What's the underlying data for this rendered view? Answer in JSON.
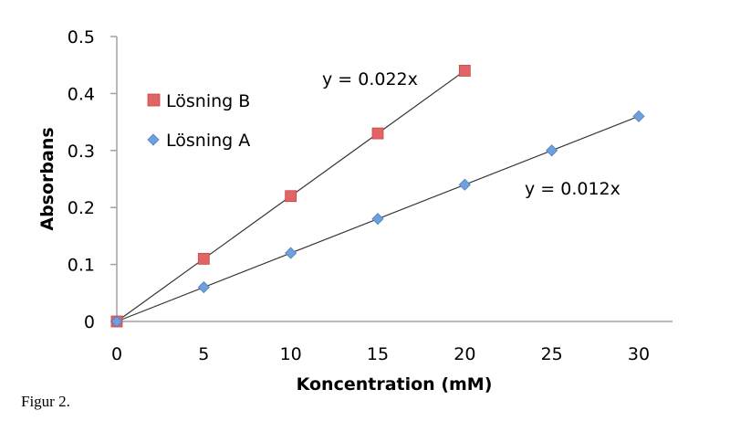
{
  "chart_data": {
    "type": "scatter",
    "title": "",
    "xlabel": "Koncentration (mM)",
    "ylabel": "Absorbans",
    "xlim": [
      0,
      30
    ],
    "ylim": [
      0,
      0.5
    ],
    "xticks": [
      "0",
      "5",
      "10",
      "15",
      "20",
      "25",
      "30"
    ],
    "yticks": [
      "0",
      "0.1",
      "0.2",
      "0.3",
      "0.4",
      "0.5"
    ],
    "grid": false,
    "legend_position": "top-left",
    "series": [
      {
        "name": "Lösning B",
        "marker": "square",
        "color": "#e06666",
        "x": [
          0,
          5,
          10,
          15,
          20
        ],
        "y": [
          0,
          0.11,
          0.22,
          0.33,
          0.44
        ],
        "trendline": {
          "slope": 0.022,
          "label": "y = 0.022x"
        }
      },
      {
        "name": "Lösning A",
        "marker": "diamond",
        "color": "#6fa0dc",
        "x": [
          0,
          5,
          10,
          15,
          20,
          25,
          30
        ],
        "y": [
          0,
          0.06,
          0.12,
          0.18,
          0.24,
          0.3,
          0.36
        ],
        "trendline": {
          "slope": 0.012,
          "label": "y = 0.012x"
        }
      }
    ]
  },
  "caption": "Figur 2."
}
